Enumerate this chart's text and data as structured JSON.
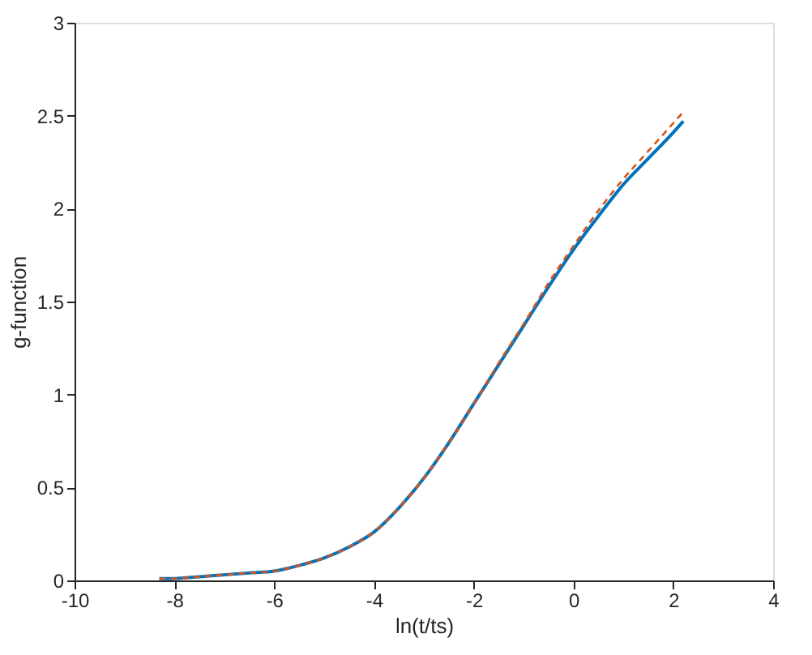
{
  "chart_data": {
    "type": "line",
    "xlabel": "ln(t/ts)",
    "ylabel": "g-function",
    "xlim": [
      -10,
      4
    ],
    "xticks": [
      -10,
      -8,
      -6,
      -4,
      -2,
      0,
      2,
      4
    ],
    "ylim": [
      0,
      3
    ],
    "yticks": [
      0,
      0.5,
      1,
      1.5,
      2,
      2.5,
      3
    ],
    "grid": false,
    "series": [
      {
        "color": "#0072bd",
        "line_style": "solid",
        "x": [
          -8.3,
          -8,
          -7.5,
          -7,
          -6.5,
          -6,
          -5.5,
          -5,
          -4.5,
          -4,
          -3.5,
          -3,
          -2.5,
          -2,
          -1.5,
          -1,
          -0.5,
          0,
          0.5,
          1,
          1.5,
          2,
          2.2
        ],
        "values": [
          0.01,
          0.01,
          0.02,
          0.03,
          0.04,
          0.05,
          0.08,
          0.12,
          0.18,
          0.26,
          0.39,
          0.55,
          0.74,
          0.95,
          1.16,
          1.37,
          1.58,
          1.78,
          1.96,
          2.13,
          2.27,
          2.41,
          2.47
        ]
      },
      {
        "color": "#d95319",
        "line_style": "dashed",
        "x": [
          -8.3,
          -8,
          -7.5,
          -7,
          -6.5,
          -6,
          -5.5,
          -5,
          -4.5,
          -4,
          -3.5,
          -3,
          -2.5,
          -2,
          -1.5,
          -1,
          -0.5,
          0,
          0.5,
          1,
          1.5,
          2,
          2.2
        ],
        "values": [
          0.01,
          0.01,
          0.02,
          0.03,
          0.04,
          0.05,
          0.08,
          0.12,
          0.18,
          0.26,
          0.39,
          0.55,
          0.74,
          0.95,
          1.17,
          1.38,
          1.6,
          1.8,
          1.99,
          2.16,
          2.31,
          2.46,
          2.52
        ]
      }
    ]
  }
}
